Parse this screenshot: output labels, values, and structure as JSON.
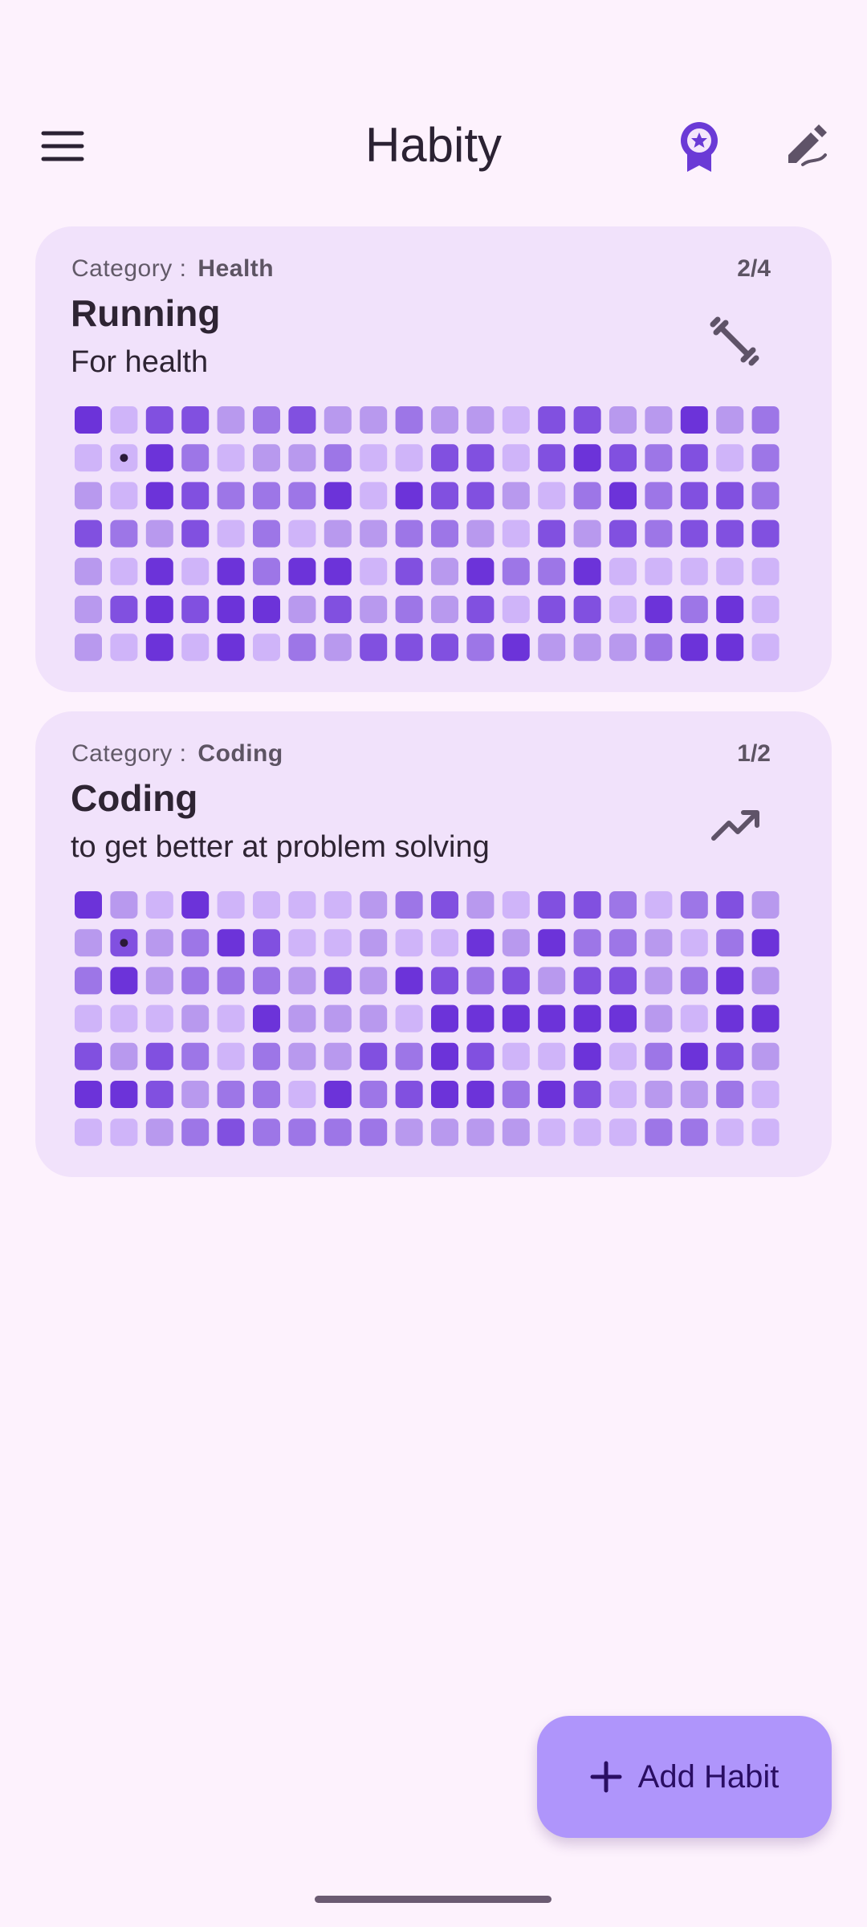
{
  "header": {
    "title": "Habity"
  },
  "habits": [
    {
      "category_label": "Category :",
      "category": "Health",
      "progress": "2/4",
      "name": "Running",
      "description": "For health"
    },
    {
      "category_label": "Category :",
      "category": "Coding",
      "progress": "1/2",
      "name": "Coding",
      "description": "to get better at problem solving"
    }
  ],
  "fab": {
    "label": "Add Habit"
  }
}
